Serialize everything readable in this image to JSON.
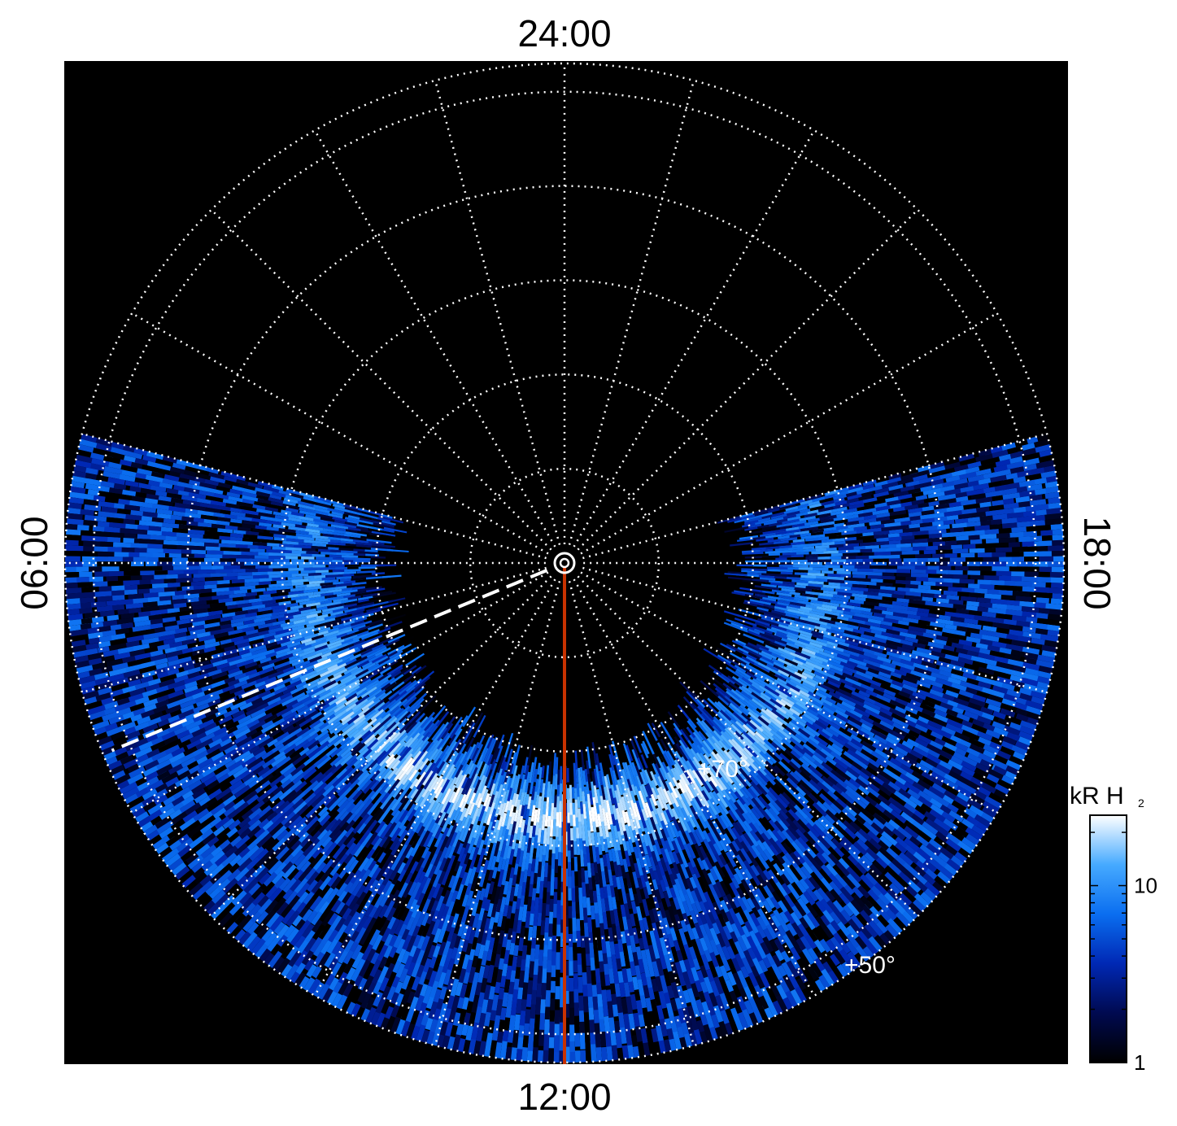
{
  "chart_data": {
    "type": "heatmap",
    "projection": "polar",
    "title": "",
    "local_time_labels": {
      "top": "24:00",
      "bottom": "12:00",
      "left": "06:00",
      "right": "18:00"
    },
    "latitude_labels": [
      {
        "text": "+70°",
        "latitude": 70
      },
      {
        "text": "+50°",
        "latitude": 50
      }
    ],
    "latitude_circles": [
      80,
      70,
      60,
      50,
      40
    ],
    "meridian_step_hours": 1,
    "grid": true,
    "colorbar": {
      "title": "kR H",
      "title_subscript": "2",
      "scale": "log",
      "range": [
        1,
        25
      ],
      "ticks": [
        {
          "value": 1,
          "label": "1"
        },
        {
          "value": 10,
          "label": "10"
        }
      ],
      "colors": [
        "#000000",
        "#000a50",
        "#0028b4",
        "#0a6ef0",
        "#46aaff",
        "#ffffff"
      ]
    },
    "highlighted_meridian": {
      "local_time": "12:00",
      "color": "#c83200"
    },
    "dashed_meridian": {
      "local_time_hours": 7.5,
      "color": "#ffffff"
    },
    "emission": {
      "visible_latitude_min": 37,
      "visible_edge_latitude": 65,
      "main_oval_latitude": 62,
      "main_oval_peak_kR": 20,
      "background_kR": 3
    }
  }
}
